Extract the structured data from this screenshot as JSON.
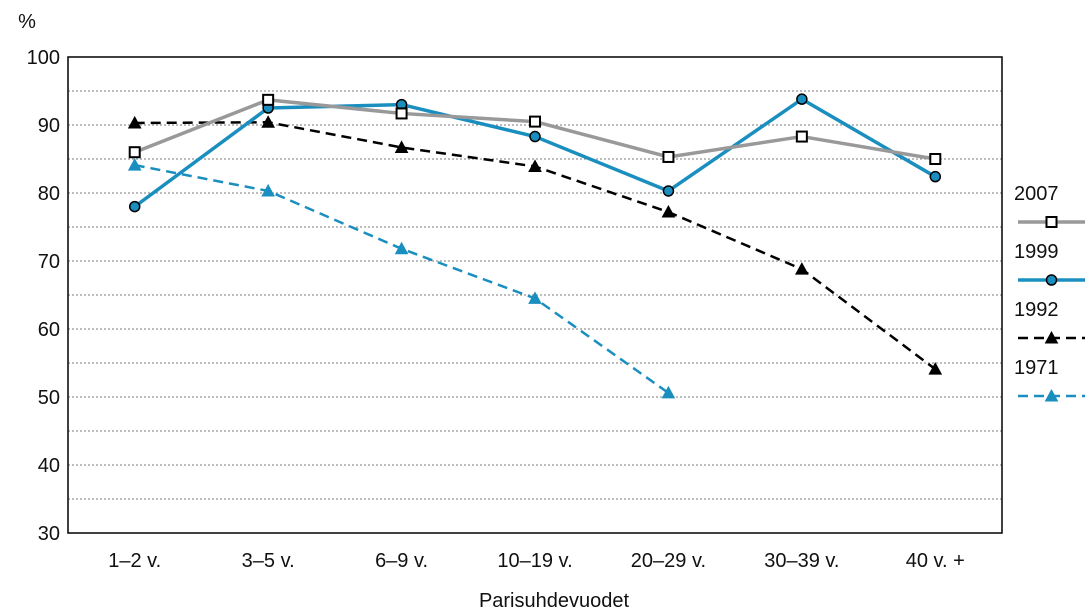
{
  "chart_data": {
    "type": "line",
    "ylabel": "%",
    "xlabel": "Parisuhdevuodet",
    "categories": [
      "1–2 v.",
      "3–5 v.",
      "6–9 v.",
      "10–19 v.",
      "20–29 v.",
      "30–39 v.",
      "40 v. +"
    ],
    "ylim": [
      30,
      100
    ],
    "yticks": [
      30,
      40,
      50,
      60,
      70,
      80,
      90,
      100
    ],
    "grid": "dotted horizontal lines every 5",
    "legend_position": "right",
    "series": [
      {
        "name": "2007",
        "color": "#999999",
        "marker": "open-square",
        "dash": "solid",
        "values": [
          86,
          93.7,
          91.7,
          90.5,
          85.3,
          88.3,
          85
        ]
      },
      {
        "name": "1999",
        "color": "#1a8fbf",
        "marker": "circle",
        "dash": "solid",
        "values": [
          78,
          92.5,
          93,
          88.3,
          80.3,
          93.8,
          82.4
        ]
      },
      {
        "name": "1992",
        "color": "#000000",
        "marker": "triangle",
        "dash": "dashed",
        "values": [
          90.3,
          90.4,
          86.7,
          83.9,
          77.2,
          68.8,
          54.1
        ]
      },
      {
        "name": "1971",
        "color": "#1a8fbf",
        "marker": "triangle",
        "dash": "dashed",
        "values": [
          84.1,
          80.3,
          71.8,
          64.5,
          50.6,
          null,
          null
        ]
      }
    ]
  }
}
